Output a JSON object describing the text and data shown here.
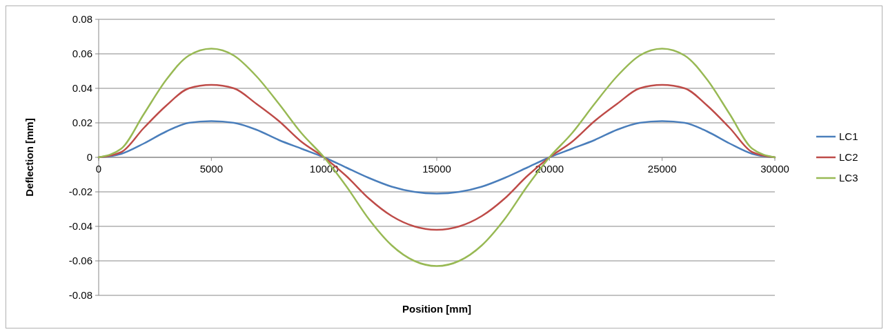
{
  "chart_data": {
    "type": "line",
    "xlabel": "Position [mm]",
    "ylabel": "Deflection [mm]",
    "x": [
      0,
      1000,
      2000,
      3000,
      4000,
      5000,
      6000,
      7000,
      8000,
      9000,
      10000,
      11000,
      12000,
      13000,
      14000,
      15000,
      16000,
      17000,
      18000,
      19000,
      20000,
      21000,
      22000,
      23000,
      24000,
      25000,
      26000,
      27000,
      28000,
      29000,
      30000
    ],
    "series": [
      {
        "name": "LC1",
        "color": "#4a7ebb",
        "values": [
          0,
          0.002,
          0.008,
          0.015,
          0.02,
          0.021,
          0.02,
          0.016,
          0.01,
          0.005,
          0,
          -0.006,
          -0.012,
          -0.017,
          -0.02,
          -0.021,
          -0.02,
          -0.017,
          -0.012,
          -0.006,
          0,
          0.005,
          0.01,
          0.016,
          0.02,
          0.021,
          0.02,
          0.015,
          0.008,
          0.002,
          0
        ]
      },
      {
        "name": "LC2",
        "color": "#be4b48",
        "values": [
          0,
          0.003,
          0.017,
          0.03,
          0.04,
          0.042,
          0.04,
          0.031,
          0.021,
          0.009,
          0,
          -0.011,
          -0.024,
          -0.034,
          -0.04,
          -0.042,
          -0.04,
          -0.034,
          -0.024,
          -0.011,
          0,
          0.009,
          0.021,
          0.031,
          0.04,
          0.042,
          0.04,
          0.03,
          0.017,
          0.003,
          0
        ]
      },
      {
        "name": "LC3",
        "color": "#98b954",
        "values": [
          0,
          0.005,
          0.025,
          0.045,
          0.059,
          0.063,
          0.059,
          0.047,
          0.031,
          0.014,
          0,
          -0.017,
          -0.036,
          -0.051,
          -0.06,
          -0.063,
          -0.06,
          -0.051,
          -0.036,
          -0.017,
          0,
          0.014,
          0.031,
          0.047,
          0.059,
          0.063,
          0.059,
          0.045,
          0.025,
          0.005,
          0
        ]
      }
    ],
    "xlim": [
      0,
      30000
    ],
    "xticks": [
      0,
      5000,
      10000,
      15000,
      20000,
      25000,
      30000
    ],
    "ylim": [
      -0.08,
      0.08
    ],
    "yticks": [
      -0.08,
      -0.06,
      -0.04,
      -0.02,
      0,
      0.02,
      0.04,
      0.06,
      0.08
    ],
    "grid": "y",
    "legend": "right",
    "marker": "none",
    "line_style": "solid"
  }
}
